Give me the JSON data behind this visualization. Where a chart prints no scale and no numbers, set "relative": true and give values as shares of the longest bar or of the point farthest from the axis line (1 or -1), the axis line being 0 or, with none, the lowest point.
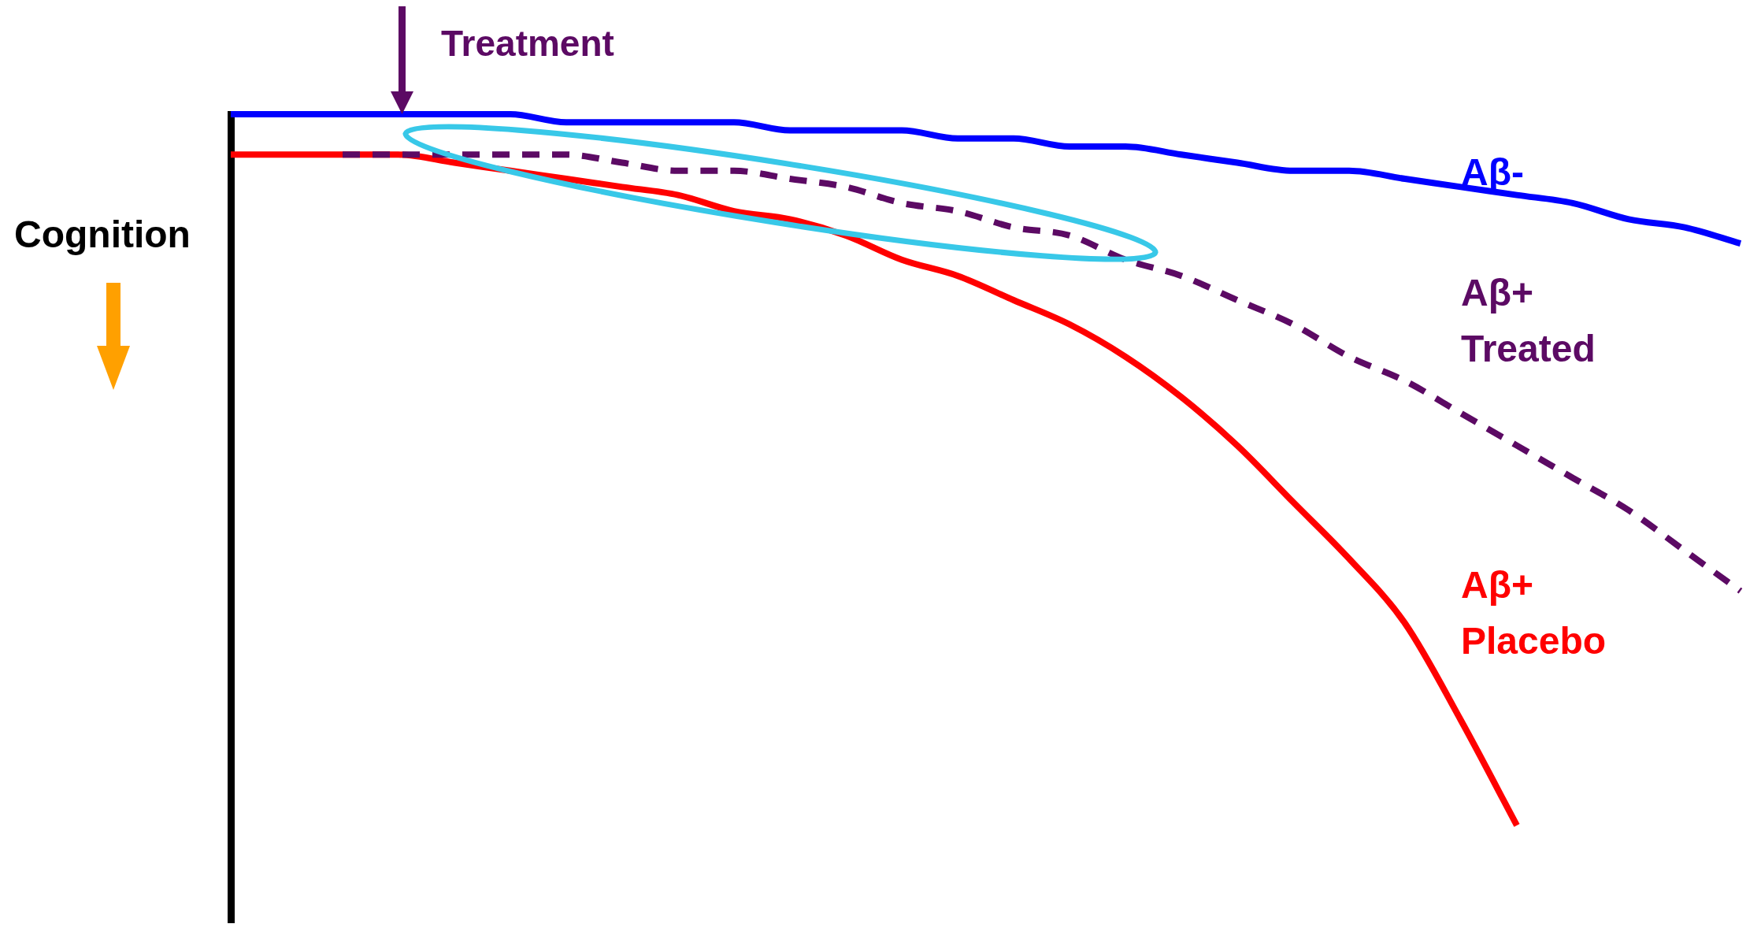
{
  "chart_data": {
    "type": "line",
    "relative": true,
    "ylabel": "Cognition",
    "annotations": [
      "Treatment"
    ],
    "legend": false,
    "grid": false,
    "marker": "none",
    "categories": [
      null,
      null,
      null,
      null,
      null,
      null,
      null,
      null,
      null,
      null,
      null,
      null,
      null,
      null,
      null,
      null,
      null,
      null,
      null,
      null,
      null,
      null,
      null,
      null,
      null,
      null,
      null,
      null
    ],
    "series": [
      {
        "name": "Aβ-",
        "color": "#0000ff",
        "line_style": "solid",
        "values": [
          1.0,
          1.0,
          1.0,
          1.0,
          1.0,
          1.0,
          0.99,
          0.99,
          0.99,
          0.99,
          0.98,
          0.98,
          0.98,
          0.97,
          0.97,
          0.96,
          0.96,
          0.95,
          0.94,
          0.93,
          0.93,
          0.92,
          0.91,
          0.9,
          0.89,
          0.87,
          0.86,
          0.84
        ]
      },
      {
        "name": "Aβ+ Treated",
        "color": "#5c0a64",
        "line_style": "dashed",
        "values": [
          null,
          null,
          0.95,
          0.95,
          0.95,
          0.95,
          0.95,
          0.94,
          0.93,
          0.93,
          0.92,
          0.91,
          0.89,
          0.88,
          0.86,
          0.85,
          0.82,
          0.8,
          0.77,
          0.74,
          0.7,
          0.67,
          0.63,
          0.59,
          0.55,
          0.51,
          0.46,
          0.41
        ]
      },
      {
        "name": "Aβ+ Placebo",
        "color": "#ff0000",
        "line_style": "solid",
        "values": [
          0.95,
          0.95,
          0.95,
          0.95,
          0.94,
          0.93,
          0.92,
          0.91,
          0.9,
          0.88,
          0.87,
          0.85,
          0.82,
          0.8,
          0.77,
          0.74,
          0.7,
          0.65,
          0.59,
          0.52,
          0.45,
          0.37,
          0.25,
          0.12,
          null,
          null,
          null,
          null
        ]
      }
    ]
  }
}
